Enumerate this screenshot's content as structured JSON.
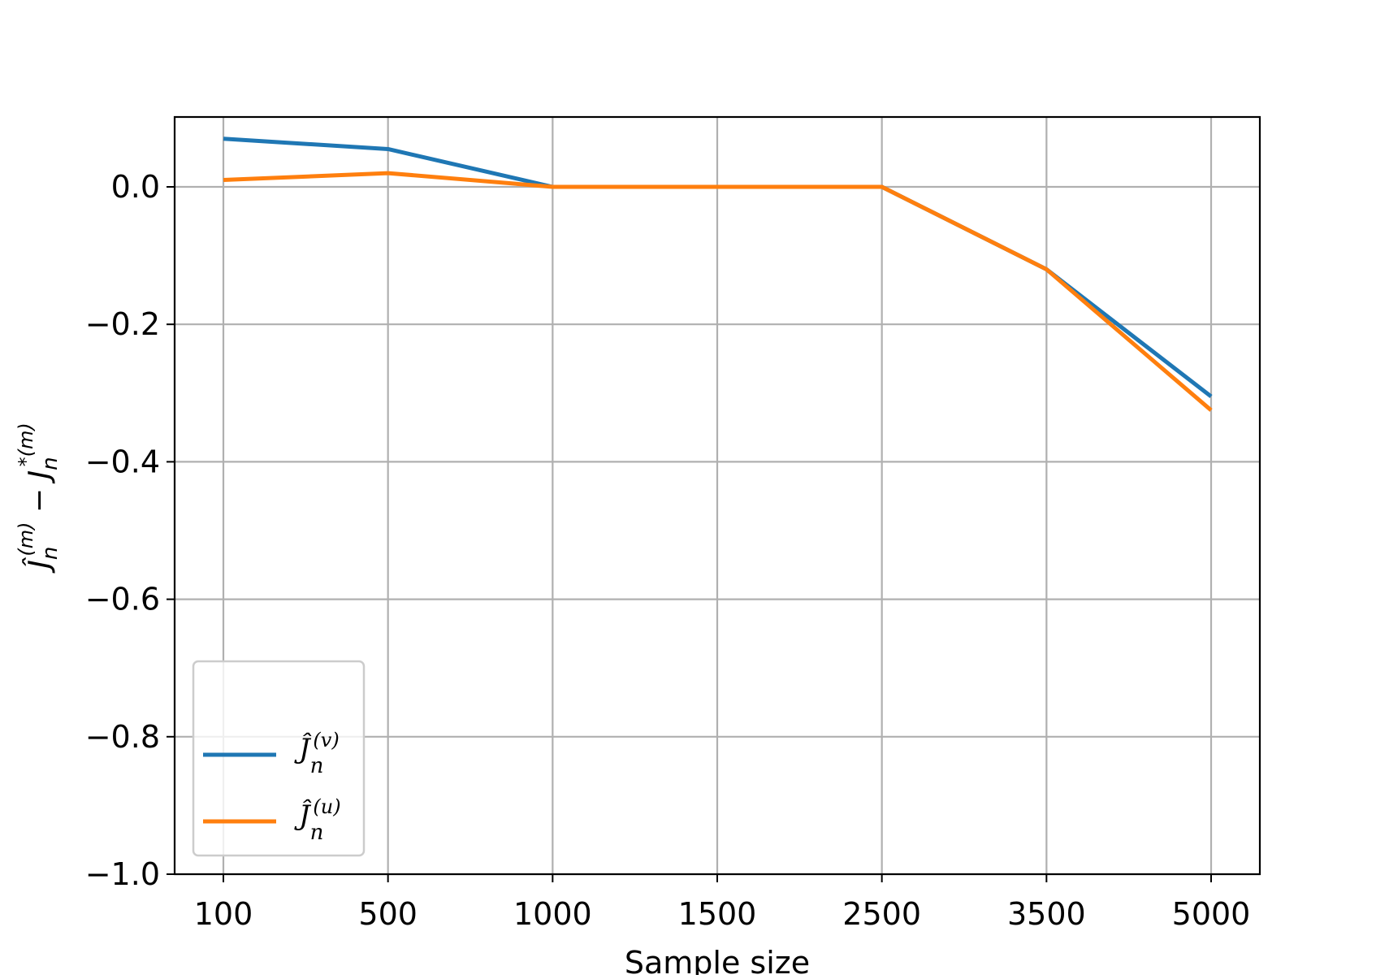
{
  "chart_data": {
    "type": "line",
    "title": "",
    "xlabel": "Sample size",
    "ylabel": "Ĵ_n^(m) − J_n^*(m)",
    "categories": [
      "100",
      "500",
      "1000",
      "1500",
      "2500",
      "3500",
      "5000"
    ],
    "ylim": [
      -1.0,
      0.1
    ],
    "yticks": [
      "0.0",
      "−0.2",
      "−0.4",
      "−0.6",
      "−0.8",
      "−1.0"
    ],
    "ytick_values": [
      0.0,
      -0.2,
      -0.4,
      -0.6,
      -0.8,
      -1.0
    ],
    "grid": true,
    "legend_position": "lower-left",
    "series": [
      {
        "name": "Ĵ_n^(v)",
        "color": "#1f77b4",
        "values": [
          0.07,
          0.055,
          0.0,
          0.0,
          0.0,
          -0.12,
          -0.305
        ]
      },
      {
        "name": "Ĵ_n^(u)",
        "color": "#ff7f0e",
        "values": [
          0.01,
          0.02,
          0.0,
          0.0,
          0.0,
          -0.12,
          -0.325
        ]
      }
    ]
  }
}
